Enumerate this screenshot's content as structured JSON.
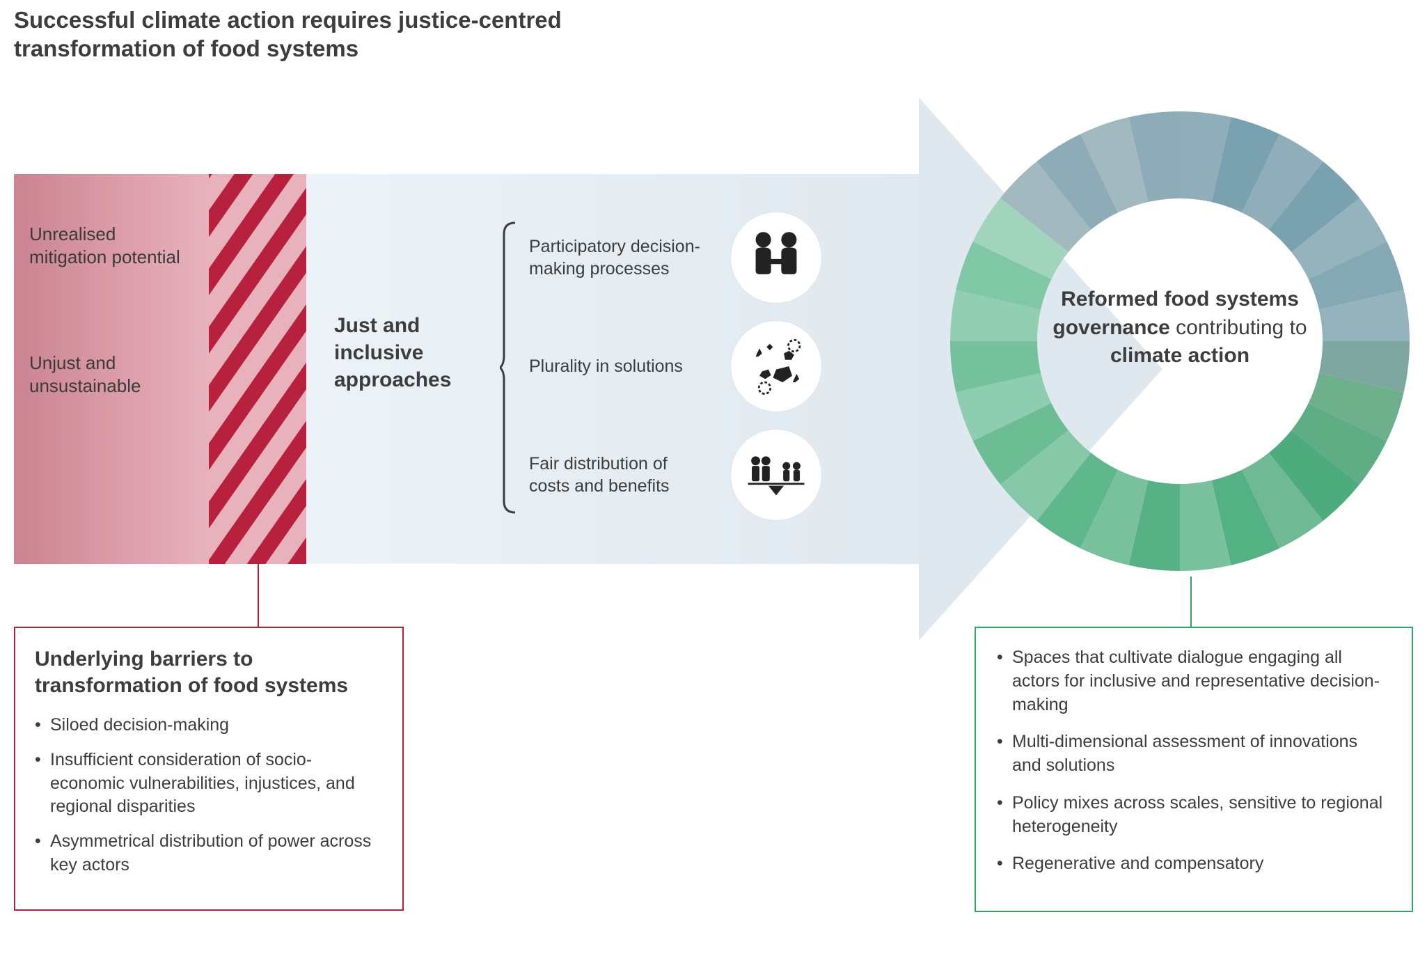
{
  "title": "Successful climate action requires justice-centred transformation of food systems",
  "colors": {
    "text": "#3d3d3d",
    "red_dark": "#b7213e",
    "red_light_a": "#cb8391",
    "red_light_b": "#e8b2bc",
    "arrow_light": "#f4f9fc",
    "arrow_mid": "#e6eef4",
    "arrow_head": "#dbe5ec",
    "green_border": "#2fa56a",
    "donut_colors": [
      "#8faeba",
      "#7aa1af",
      "#8faeba",
      "#7aa1af",
      "#94b3bd",
      "#84a9b5",
      "#94b3bd",
      "#7ea7a1",
      "#6fb08c",
      "#5ead85",
      "#4eab7e",
      "#6fb995",
      "#53b183",
      "#7ac29e",
      "#56b285",
      "#79c19d",
      "#5fb78c",
      "#86c8a8",
      "#6cbd94",
      "#8ecdaf",
      "#74c19b",
      "#92cfb2",
      "#7fc7a5",
      "#a0d5bb",
      "#a3b9c0",
      "#8eacb8",
      "#a3b9c0",
      "#8eacb8"
    ]
  },
  "red_block": {
    "item1": "Unrealised mitigation potential",
    "item2": "Unjust and unsustainable"
  },
  "just_label": "Just and inclusive approaches",
  "approaches": [
    {
      "label": "Participatory decision-making processes",
      "icon": "handshake"
    },
    {
      "label": "Plurality in solutions",
      "icon": "shapes"
    },
    {
      "label": "Fair distribution of costs and benefits",
      "icon": "balance"
    }
  ],
  "donut_center_html": "<b>Reformed food systems governance</b> contributing to <b>climate action</b>",
  "barriers": {
    "title": "Underlying barriers to transformation of food systems",
    "items": [
      "Siloed decision-making",
      "Insufficient consideration of socio-economic vulnerabilities, injustices, and regional disparities",
      "Asymmetrical distribution of power across key actors"
    ]
  },
  "reforms": {
    "items": [
      "Spaces that cultivate dialogue engaging all actors for inclusive and representative decision-making",
      "Multi-dimensional assessment of innovations and solutions",
      "Policy mixes across scales, sensitive to regional heterogeneity",
      "Regenerative and compensatory"
    ]
  },
  "donut": {
    "segments": 28,
    "inner_radius": 205,
    "outer_radius": 330
  }
}
